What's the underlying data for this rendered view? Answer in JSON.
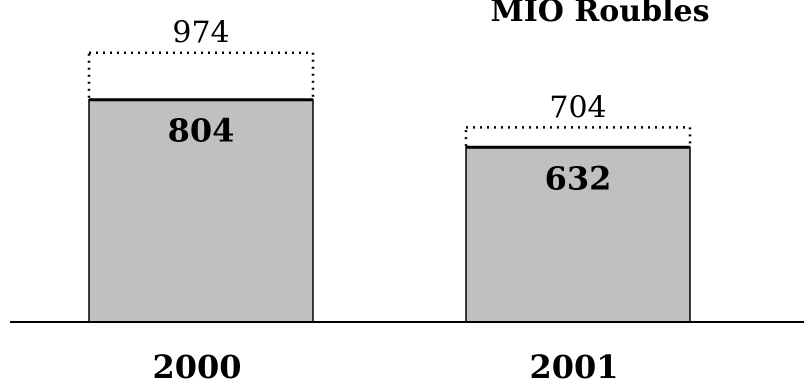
{
  "chart_data": {
    "type": "bar",
    "title": "MIO Roubles",
    "categories": [
      "2000",
      "2001"
    ],
    "series": [
      {
        "values": [
          804,
          632
        ]
      },
      {
        "values": [
          974,
          704
        ]
      }
    ],
    "ylim": [
      0,
      1000
    ],
    "grid": false,
    "legend": "none",
    "colors": {
      "bar_fill": "#c0c0c0",
      "outline": "#000000",
      "dotted_outline": "#000000",
      "background": "#ffffff"
    }
  }
}
